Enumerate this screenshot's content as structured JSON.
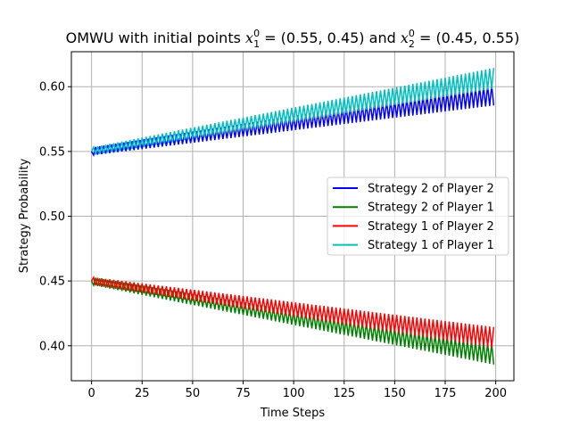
{
  "chart_data": {
    "type": "line",
    "title": "OMWU with initial points",
    "title_math_1": "x",
    "title_math_1_sup": "0",
    "title_math_1_sub": "1",
    "title_math_1_value": " = (0.55, 0.45)",
    "title_and": " and ",
    "title_math_2": "x",
    "title_math_2_sup": "0",
    "title_math_2_sub": "2",
    "title_math_2_value": " = (0.45, 0.55)",
    "xlabel": "Time Steps",
    "ylabel": "Strategy Probability",
    "xlim": [
      -10,
      209
    ],
    "ylim": [
      0.373,
      0.627
    ],
    "xticks": [
      0,
      25,
      50,
      75,
      100,
      125,
      150,
      175,
      200
    ],
    "yticks": [
      0.4,
      0.45,
      0.5,
      0.55,
      0.6
    ],
    "grid": true,
    "legend_position": "center-right",
    "x_range": [
      0,
      199
    ],
    "series": [
      {
        "name": "Strategy 2 of Player 2",
        "color": "#0000ff",
        "start": 0.55,
        "end_center": 0.5935,
        "amplitude_start": 0.003,
        "amplitude_end": 0.008,
        "first_step": "down"
      },
      {
        "name": "Strategy 2 of Player 1",
        "color": "#008000",
        "start": 0.45,
        "end_center": 0.3935,
        "amplitude_start": 0.003,
        "amplitude_end": 0.008,
        "first_step": "down"
      },
      {
        "name": "Strategy 1 of Player 2",
        "color": "#ff0000",
        "start": 0.45,
        "end_center": 0.4065,
        "amplitude_start": 0.003,
        "amplitude_end": 0.008,
        "first_step": "up"
      },
      {
        "name": "Strategy 1 of Player 1",
        "color": "#00bfbf",
        "start": 0.55,
        "end_center": 0.6065,
        "amplitude_start": 0.003,
        "amplitude_end": 0.008,
        "first_step": "up"
      }
    ]
  }
}
